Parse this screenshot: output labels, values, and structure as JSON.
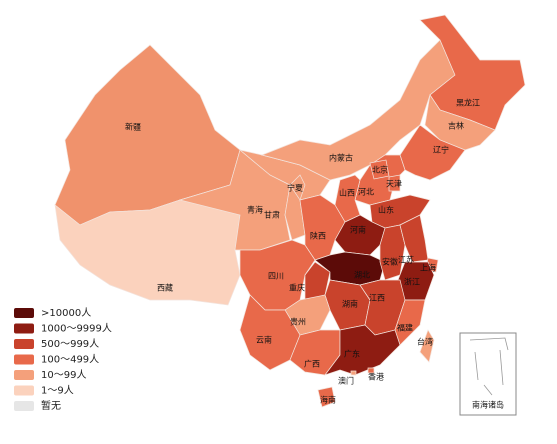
{
  "legend": [
    {
      "label": ">10000人",
      "color": "#5c0b08"
    },
    {
      "label": "1000～9999人",
      "color": "#8e1c12"
    },
    {
      "label": "500～999人",
      "color": "#c9432c"
    },
    {
      "label": "100～499人",
      "color": "#e8694a"
    },
    {
      "label": "10～99人",
      "color": "#f4a07b"
    },
    {
      "label": "1～9人",
      "color": "#fbd2bd"
    },
    {
      "label": "暂无",
      "color": "#e6e6e6"
    }
  ],
  "regions": [
    {
      "name": "新疆",
      "color": "#f0926c"
    },
    {
      "name": "西藏",
      "color": "#fbd2bd"
    },
    {
      "name": "青海",
      "color": "#f4a07b"
    },
    {
      "name": "甘肃",
      "color": "#f4a07b"
    },
    {
      "name": "内蒙古",
      "color": "#f4a07b"
    },
    {
      "name": "黑龙江",
      "color": "#e8694a"
    },
    {
      "name": "吉林",
      "color": "#f4a07b"
    },
    {
      "name": "辽宁",
      "color": "#e8694a"
    },
    {
      "name": "河北",
      "color": "#e8694a"
    },
    {
      "name": "北京",
      "color": "#e8694a"
    },
    {
      "name": "天津",
      "color": "#e8694a"
    },
    {
      "name": "山西",
      "color": "#e8694a"
    },
    {
      "name": "山东",
      "color": "#c9432c"
    },
    {
      "name": "宁夏",
      "color": "#f4a07b"
    },
    {
      "name": "陕西",
      "color": "#e8694a"
    },
    {
      "name": "河南",
      "color": "#8e1c12"
    },
    {
      "name": "四川",
      "color": "#e8694a"
    },
    {
      "name": "重庆",
      "color": "#c9432c"
    },
    {
      "name": "湖北",
      "color": "#5c0b08"
    },
    {
      "name": "安徽",
      "color": "#c9432c"
    },
    {
      "name": "江苏",
      "color": "#c9432c"
    },
    {
      "name": "上海",
      "color": "#e8694a"
    },
    {
      "name": "浙江",
      "color": "#8e1c12"
    },
    {
      "name": "湖南",
      "color": "#c9432c"
    },
    {
      "name": "江西",
      "color": "#c9432c"
    },
    {
      "name": "福建",
      "color": "#e8694a"
    },
    {
      "name": "贵州",
      "color": "#f4a07b"
    },
    {
      "name": "云南",
      "color": "#e8694a"
    },
    {
      "name": "广西",
      "color": "#e8694a"
    },
    {
      "name": "广东",
      "color": "#8e1c12"
    },
    {
      "name": "台湾",
      "color": "#f4a07b"
    },
    {
      "name": "香港",
      "color": "#e8694a"
    },
    {
      "name": "澳门",
      "color": "#f4a07b"
    },
    {
      "name": "海南",
      "color": "#e8694a"
    }
  ],
  "inset_label": "南海诸岛"
}
